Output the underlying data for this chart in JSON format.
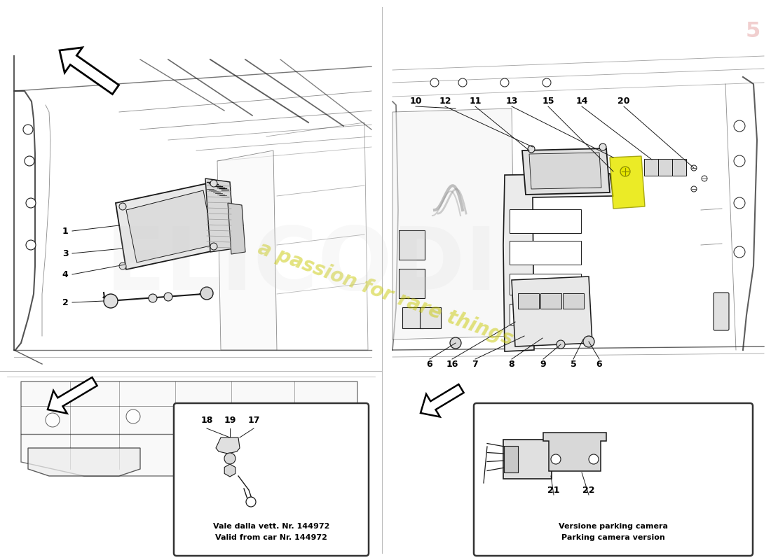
{
  "background_color": "#ffffff",
  "watermark_text": "a passion for rare things",
  "watermark_color": "#c8c800",
  "brand_text": "ELICODI",
  "brand_color": "#d0d0d0",
  "inset_text1_line1": "Vale dalla vett. Nr. 144972",
  "inset_text1_line2": "Valid from car Nr. 144972",
  "inset_text2_line1": "Versione parking camera",
  "inset_text2_line2": "Parking camera version",
  "line_color": "#1a1a1a",
  "page_num": "5",
  "font_size_labels": 9,
  "font_size_inset_text": 8
}
